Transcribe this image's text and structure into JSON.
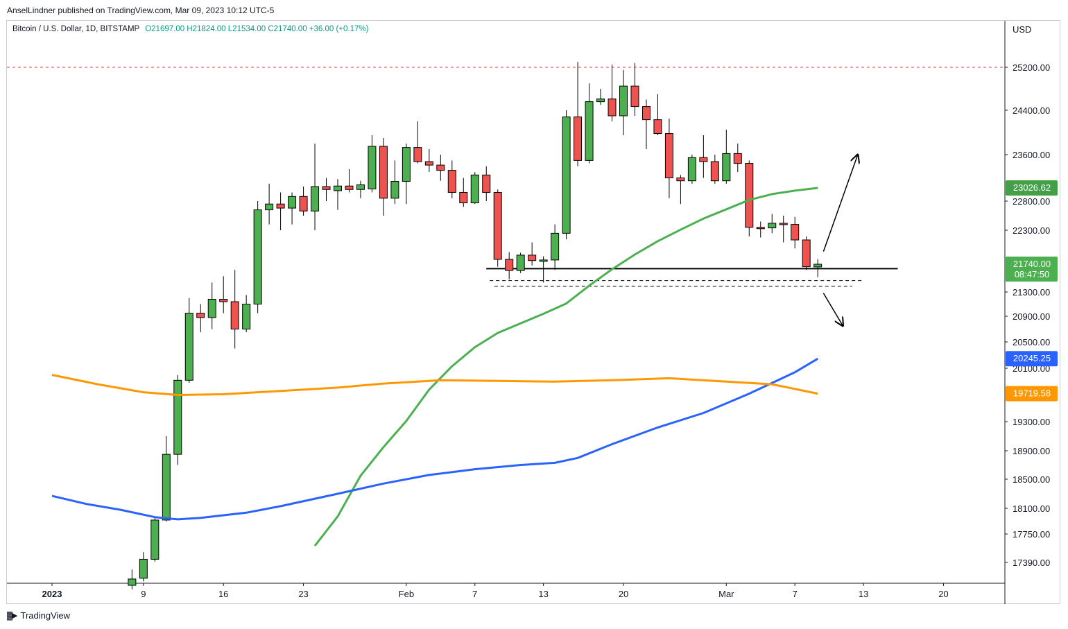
{
  "header": {
    "publisher": "AnselLindner published on TradingView.com, Mar 09, 2023 10:12 UTC-5"
  },
  "legend": {
    "symbol": "Bitcoin / U.S. Dollar, 1D, BITSTAMP",
    "ohlc": "O21697.00  H21824.00  L21534.00  C21740.00  +36.00 (+0.17%)"
  },
  "footer": {
    "brand": "TradingView",
    "logo": "tradingview-logo-icon"
  },
  "chart_data": {
    "type": "candlestick",
    "currency_label": "USD",
    "y_ticks": [
      25200,
      24400,
      23600,
      22800,
      22300,
      21300,
      20900,
      20500,
      20100,
      19300,
      18900,
      18500,
      18100,
      17750,
      17390
    ],
    "y_tick_labels": [
      "25200.00",
      "24400.00",
      "23600.00",
      "22800.00",
      "22300.00",
      "21300.00",
      "20900.00",
      "20500.00",
      "20100.00",
      "19300.00",
      "18900.00",
      "18500.00",
      "18100.00",
      "17750.00",
      "17390.00"
    ],
    "x_ticks": [
      {
        "label": "2023",
        "day": 1,
        "bold": true
      },
      {
        "label": "9",
        "day": 9
      },
      {
        "label": "16",
        "day": 16
      },
      {
        "label": "23",
        "day": 23
      },
      {
        "label": "Feb",
        "day": 32
      },
      {
        "label": "7",
        "day": 38
      },
      {
        "label": "13",
        "day": 44
      },
      {
        "label": "20",
        "day": 51
      },
      {
        "label": "Mar",
        "day": 60
      },
      {
        "label": "7",
        "day": 66
      },
      {
        "label": "13",
        "day": 72
      },
      {
        "label": "20",
        "day": 79
      }
    ],
    "candles": [
      {
        "day": 8,
        "o": 17100,
        "h": 17300,
        "l": 17050,
        "c": 17180
      },
      {
        "day": 9,
        "o": 17190,
        "h": 17520,
        "l": 17150,
        "c": 17430
      },
      {
        "day": 10,
        "o": 17430,
        "h": 17970,
        "l": 17400,
        "c": 17940
      },
      {
        "day": 11,
        "o": 17940,
        "h": 19100,
        "l": 17920,
        "c": 18850
      },
      {
        "day": 12,
        "o": 18850,
        "h": 20000,
        "l": 18700,
        "c": 19920
      },
      {
        "day": 13,
        "o": 19920,
        "h": 21200,
        "l": 19880,
        "c": 20950
      },
      {
        "day": 14,
        "o": 20950,
        "h": 21100,
        "l": 20650,
        "c": 20880
      },
      {
        "day": 15,
        "o": 20880,
        "h": 21450,
        "l": 20700,
        "c": 21180
      },
      {
        "day": 16,
        "o": 21180,
        "h": 21550,
        "l": 20950,
        "c": 21140
      },
      {
        "day": 17,
        "o": 21140,
        "h": 21650,
        "l": 20400,
        "c": 20700
      },
      {
        "day": 18,
        "o": 20700,
        "h": 21250,
        "l": 20650,
        "c": 21100
      },
      {
        "day": 19,
        "o": 21100,
        "h": 22800,
        "l": 20950,
        "c": 22650
      },
      {
        "day": 20,
        "o": 22650,
        "h": 23100,
        "l": 22400,
        "c": 22750
      },
      {
        "day": 21,
        "o": 22750,
        "h": 22950,
        "l": 22300,
        "c": 22680
      },
      {
        "day": 22,
        "o": 22680,
        "h": 22950,
        "l": 22400,
        "c": 22880
      },
      {
        "day": 23,
        "o": 22880,
        "h": 23050,
        "l": 22550,
        "c": 22630
      },
      {
        "day": 24,
        "o": 22630,
        "h": 23800,
        "l": 22300,
        "c": 23050
      },
      {
        "day": 25,
        "o": 23050,
        "h": 23200,
        "l": 22800,
        "c": 23000
      },
      {
        "day": 26,
        "o": 22980,
        "h": 23180,
        "l": 22650,
        "c": 23060
      },
      {
        "day": 27,
        "o": 23060,
        "h": 23350,
        "l": 22950,
        "c": 23000
      },
      {
        "day": 28,
        "o": 23000,
        "h": 23150,
        "l": 22850,
        "c": 23080
      },
      {
        "day": 29,
        "o": 23010,
        "h": 23950,
        "l": 22950,
        "c": 23750
      },
      {
        "day": 30,
        "o": 23750,
        "h": 23900,
        "l": 22550,
        "c": 22850
      },
      {
        "day": 31,
        "o": 22850,
        "h": 23500,
        "l": 22750,
        "c": 23140
      },
      {
        "day": 32,
        "o": 23140,
        "h": 23800,
        "l": 22750,
        "c": 23730
      },
      {
        "day": 33,
        "o": 23730,
        "h": 24200,
        "l": 23450,
        "c": 23480
      },
      {
        "day": 34,
        "o": 23480,
        "h": 23700,
        "l": 23300,
        "c": 23420
      },
      {
        "day": 35,
        "o": 23420,
        "h": 23600,
        "l": 23150,
        "c": 23330
      },
      {
        "day": 36,
        "o": 23330,
        "h": 23500,
        "l": 22850,
        "c": 22950
      },
      {
        "day": 37,
        "o": 22950,
        "h": 23200,
        "l": 22700,
        "c": 22770
      },
      {
        "day": 38,
        "o": 22770,
        "h": 23300,
        "l": 22750,
        "c": 23250
      },
      {
        "day": 39,
        "o": 23250,
        "h": 23400,
        "l": 22800,
        "c": 22950
      },
      {
        "day": 40,
        "o": 22950,
        "h": 23000,
        "l": 21700,
        "c": 21820
      },
      {
        "day": 41,
        "o": 21820,
        "h": 21940,
        "l": 21500,
        "c": 21640
      },
      {
        "day": 42,
        "o": 21640,
        "h": 21930,
        "l": 21600,
        "c": 21890
      },
      {
        "day": 43,
        "o": 21890,
        "h": 22100,
        "l": 21720,
        "c": 21800
      },
      {
        "day": 44,
        "o": 21800,
        "h": 21870,
        "l": 21450,
        "c": 21810
      },
      {
        "day": 45,
        "o": 21810,
        "h": 22400,
        "l": 21650,
        "c": 22250
      },
      {
        "day": 46,
        "o": 22250,
        "h": 24400,
        "l": 22150,
        "c": 24280
      },
      {
        "day": 47,
        "o": 24280,
        "h": 25300,
        "l": 23400,
        "c": 23500
      },
      {
        "day": 48,
        "o": 23500,
        "h": 24900,
        "l": 23450,
        "c": 24560
      },
      {
        "day": 49,
        "o": 24560,
        "h": 24800,
        "l": 24500,
        "c": 24610
      },
      {
        "day": 50,
        "o": 24610,
        "h": 25250,
        "l": 24200,
        "c": 24300
      },
      {
        "day": 51,
        "o": 24300,
        "h": 25150,
        "l": 23950,
        "c": 24850
      },
      {
        "day": 52,
        "o": 24850,
        "h": 25280,
        "l": 24300,
        "c": 24470
      },
      {
        "day": 53,
        "o": 24470,
        "h": 24600,
        "l": 23700,
        "c": 24230
      },
      {
        "day": 54,
        "o": 24230,
        "h": 24700,
        "l": 23950,
        "c": 23980
      },
      {
        "day": 55,
        "o": 23980,
        "h": 24250,
        "l": 22850,
        "c": 23200
      },
      {
        "day": 56,
        "o": 23200,
        "h": 23250,
        "l": 22750,
        "c": 23150
      },
      {
        "day": 57,
        "o": 23150,
        "h": 23600,
        "l": 23100,
        "c": 23550
      },
      {
        "day": 58,
        "o": 23550,
        "h": 23950,
        "l": 23200,
        "c": 23480
      },
      {
        "day": 59,
        "o": 23480,
        "h": 23600,
        "l": 23100,
        "c": 23150
      },
      {
        "day": 60,
        "o": 23150,
        "h": 24050,
        "l": 23100,
        "c": 23620
      },
      {
        "day": 61,
        "o": 23620,
        "h": 23800,
        "l": 23300,
        "c": 23450
      },
      {
        "day": 62,
        "o": 23450,
        "h": 23500,
        "l": 22200,
        "c": 22350
      },
      {
        "day": 63,
        "o": 22350,
        "h": 22450,
        "l": 22180,
        "c": 22340
      },
      {
        "day": 64,
        "o": 22340,
        "h": 22580,
        "l": 22250,
        "c": 22420
      },
      {
        "day": 65,
        "o": 22420,
        "h": 22550,
        "l": 22100,
        "c": 22400
      },
      {
        "day": 66,
        "o": 22400,
        "h": 22530,
        "l": 22000,
        "c": 22140
      },
      {
        "day": 67,
        "o": 22140,
        "h": 22200,
        "l": 21650,
        "c": 21700
      },
      {
        "day": 68,
        "o": 21697,
        "h": 21824,
        "l": 21534,
        "c": 21740
      }
    ],
    "series": [
      {
        "name": "",
        "color": "#4caf50",
        "points": [
          [
            24,
            17600
          ],
          [
            26,
            17990
          ],
          [
            28,
            18550
          ],
          [
            30,
            18950
          ],
          [
            32,
            19310
          ],
          [
            34,
            19780
          ],
          [
            36,
            20130
          ],
          [
            38,
            20420
          ],
          [
            40,
            20640
          ],
          [
            42,
            20790
          ],
          [
            44,
            20940
          ],
          [
            46,
            21110
          ],
          [
            48,
            21400
          ],
          [
            50,
            21660
          ],
          [
            52,
            21900
          ],
          [
            54,
            22120
          ],
          [
            56,
            22310
          ],
          [
            58,
            22500
          ],
          [
            60,
            22660
          ],
          [
            62,
            22820
          ],
          [
            64,
            22920
          ],
          [
            66,
            22980
          ],
          [
            68,
            23026.62
          ]
        ]
      },
      {
        "name": "",
        "color": "#2962ff",
        "points": [
          [
            1,
            18270
          ],
          [
            4,
            18160
          ],
          [
            7,
            18080
          ],
          [
            10,
            17980
          ],
          [
            12,
            17950
          ],
          [
            14,
            17970
          ],
          [
            18,
            18040
          ],
          [
            21,
            18130
          ],
          [
            26,
            18300
          ],
          [
            30,
            18440
          ],
          [
            34,
            18560
          ],
          [
            38,
            18640
          ],
          [
            42,
            18700
          ],
          [
            45,
            18730
          ],
          [
            47,
            18800
          ],
          [
            50,
            18990
          ],
          [
            54,
            19220
          ],
          [
            58,
            19430
          ],
          [
            62,
            19720
          ],
          [
            66,
            20040
          ],
          [
            68,
            20245.25
          ]
        ]
      },
      {
        "name": "",
        "color": "#ff9800",
        "points": [
          [
            1,
            20000
          ],
          [
            5,
            19860
          ],
          [
            9,
            19740
          ],
          [
            12,
            19700
          ],
          [
            16,
            19710
          ],
          [
            21,
            19760
          ],
          [
            26,
            19810
          ],
          [
            30,
            19870
          ],
          [
            35,
            19920
          ],
          [
            40,
            19910
          ],
          [
            45,
            19900
          ],
          [
            50,
            19920
          ],
          [
            55,
            19950
          ],
          [
            60,
            19900
          ],
          [
            64,
            19860
          ],
          [
            68,
            19719.58
          ]
        ]
      }
    ],
    "price_badges": [
      {
        "value": "23026.62",
        "color": "#43a047",
        "price": 23026.62
      },
      {
        "value": "21740.00",
        "subvalue": "08:47:50",
        "color": "#4caf50",
        "price": 21740
      },
      {
        "value": "20245.25",
        "color": "#2962ff",
        "price": 20245.25
      },
      {
        "value": "19719.58",
        "color": "#ff9800",
        "price": 19719.58
      }
    ],
    "annotations": {
      "resistance_price": 25200,
      "support_price": 21670,
      "support_dashed_prices": [
        21480,
        21390
      ],
      "support_day_range": [
        39,
        75
      ],
      "arrow_up": {
        "from_day": 68.5,
        "from_price": 21950,
        "to_day": 71.5,
        "to_price": 23600
      },
      "arrow_down": {
        "from_day": 68.5,
        "from_price": 21280,
        "to_day": 70.2,
        "to_price": 20750
      }
    }
  }
}
